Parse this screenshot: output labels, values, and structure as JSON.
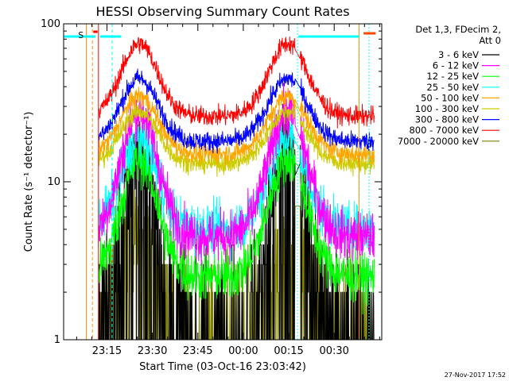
{
  "chart_data": {
    "type": "line",
    "title": "HESSI Observing Summary Count Rates",
    "xlabel": "Start Time (03-Oct-16 23:03:42)",
    "ylabel": "Count Rate (s⁻¹ detector⁻¹)",
    "y_scale": "log",
    "ylim": [
      1,
      100
    ],
    "x_range_minutes": [
      -3,
      102
    ],
    "x_ticks": [
      {
        "label": "23:15",
        "t": 11.3
      },
      {
        "label": "23:30",
        "t": 26.3
      },
      {
        "label": "23:45",
        "t": 41.3
      },
      {
        "label": "00:00",
        "t": 56.3
      },
      {
        "label": "00:15",
        "t": 71.3
      },
      {
        "label": "00:30",
        "t": 86.3
      }
    ],
    "y_ticks": [
      "1",
      "10",
      "100"
    ],
    "legend_header": [
      "Det 1,3, FDecim 2,",
      "Att 0"
    ],
    "legend_position": "right",
    "attenuator_label": "S",
    "footer_timestamp": "27-Nov-2017 17:52",
    "series": [
      {
        "name": "3 - 6 keV",
        "color": "#000000",
        "data_min": 1.0,
        "data_max": 18.0
      },
      {
        "name": "6 - 12 keV",
        "color": "#ff00ff",
        "data_min": 4.5,
        "data_max": 28.0
      },
      {
        "name": "12 - 25 keV",
        "color": "#00ff00",
        "data_min": 2.5,
        "data_max": 14.0
      },
      {
        "name": "25 - 50 keV",
        "color": "#00ffff",
        "data_min": 5.0,
        "data_max": 19.0
      },
      {
        "name": "50 - 100 keV",
        "color": "#ffa500",
        "data_min": 15.0,
        "data_max": 35.0
      },
      {
        "name": "100 - 300 keV",
        "color": "#cccc00",
        "data_min": 13.0,
        "data_max": 28.0
      },
      {
        "name": "300 - 800 keV",
        "color": "#0000ff",
        "data_min": 18.0,
        "data_max": 45.0
      },
      {
        "name": "800 - 7000 keV",
        "color": "#ff0000",
        "data_min": 26.0,
        "data_max": 75.0
      },
      {
        "name": "7000 - 20000 keV",
        "color": "#808000",
        "data_min": 1.0,
        "data_max": 5.0
      }
    ]
  }
}
